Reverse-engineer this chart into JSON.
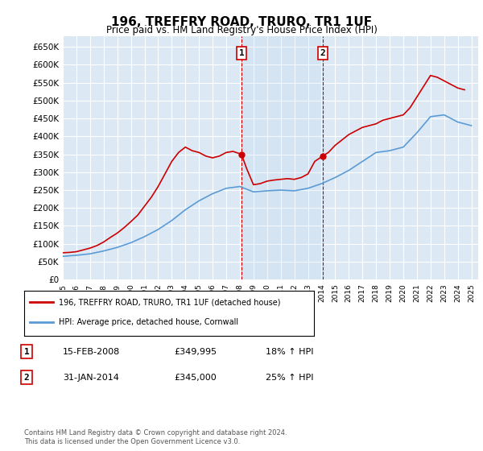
{
  "title": "196, TREFFRY ROAD, TRURO, TR1 1UF",
  "subtitle": "Price paid vs. HM Land Registry's House Price Index (HPI)",
  "ylabel_ticks": [
    "£0",
    "£50K",
    "£100K",
    "£150K",
    "£200K",
    "£250K",
    "£300K",
    "£350K",
    "£400K",
    "£450K",
    "£500K",
    "£550K",
    "£600K",
    "£650K"
  ],
  "ytick_values": [
    0,
    50000,
    100000,
    150000,
    200000,
    250000,
    300000,
    350000,
    400000,
    450000,
    500000,
    550000,
    600000,
    650000
  ],
  "ylim": [
    0,
    680000
  ],
  "xlim_start": 1995.0,
  "xlim_end": 2025.5,
  "background_color": "#ffffff",
  "plot_bg_color": "#dce9f5",
  "grid_color": "#ffffff",
  "red_line_color": "#cc0000",
  "blue_line_color": "#5b9bd5",
  "transaction1_x": 2008.12,
  "transaction1_y": 349995,
  "transaction2_x": 2014.08,
  "transaction2_y": 345000,
  "legend_label1": "196, TREFFRY ROAD, TRURO, TR1 1UF (detached house)",
  "legend_label2": "HPI: Average price, detached house, Cornwall",
  "annotation1_label": "1",
  "annotation2_label": "2",
  "table_row1": [
    "1",
    "15-FEB-2008",
    "£349,995",
    "18% ↑ HPI"
  ],
  "table_row2": [
    "2",
    "31-JAN-2014",
    "£345,000",
    "25% ↑ HPI"
  ],
  "footer": "Contains HM Land Registry data © Crown copyright and database right 2024.\nThis data is licensed under the Open Government Licence v3.0.",
  "x_years": [
    1995,
    1996,
    1997,
    1998,
    1999,
    2000,
    2001,
    2002,
    2003,
    2004,
    2005,
    2006,
    2007,
    2008,
    2009,
    2010,
    2011,
    2012,
    2013,
    2014,
    2015,
    2016,
    2017,
    2018,
    2019,
    2020,
    2021,
    2022,
    2023,
    2024,
    2025
  ],
  "hpi_values": [
    65000,
    68000,
    72000,
    80000,
    90000,
    103000,
    120000,
    140000,
    165000,
    195000,
    220000,
    240000,
    255000,
    260000,
    245000,
    248000,
    250000,
    248000,
    255000,
    268000,
    285000,
    305000,
    330000,
    355000,
    360000,
    370000,
    410000,
    455000,
    460000,
    440000,
    430000
  ],
  "price_values_x": [
    1995.0,
    1995.5,
    1996.0,
    1996.5,
    1997.0,
    1997.5,
    1998.0,
    1998.5,
    1999.0,
    1999.5,
    2000.0,
    2000.5,
    2001.0,
    2001.5,
    2002.0,
    2002.5,
    2003.0,
    2003.5,
    2004.0,
    2004.5,
    2005.0,
    2005.5,
    2006.0,
    2006.5,
    2007.0,
    2007.5,
    2008.12,
    2008.5,
    2009.0,
    2009.5,
    2010.0,
    2010.5,
    2011.0,
    2011.5,
    2012.0,
    2012.5,
    2013.0,
    2013.5,
    2014.08,
    2014.5,
    2015.0,
    2015.5,
    2016.0,
    2016.5,
    2017.0,
    2017.5,
    2018.0,
    2018.5,
    2019.0,
    2019.5,
    2020.0,
    2020.5,
    2021.0,
    2021.5,
    2022.0,
    2022.5,
    2023.0,
    2023.5,
    2024.0,
    2024.5
  ],
  "price_values_y": [
    75000,
    76000,
    78000,
    83000,
    88000,
    95000,
    105000,
    118000,
    130000,
    145000,
    162000,
    180000,
    205000,
    230000,
    260000,
    295000,
    330000,
    355000,
    370000,
    360000,
    355000,
    345000,
    340000,
    345000,
    355000,
    358000,
    349995,
    310000,
    265000,
    268000,
    275000,
    278000,
    280000,
    282000,
    280000,
    285000,
    295000,
    330000,
    345000,
    355000,
    375000,
    390000,
    405000,
    415000,
    425000,
    430000,
    435000,
    445000,
    450000,
    455000,
    460000,
    480000,
    510000,
    540000,
    570000,
    565000,
    555000,
    545000,
    535000,
    530000
  ]
}
